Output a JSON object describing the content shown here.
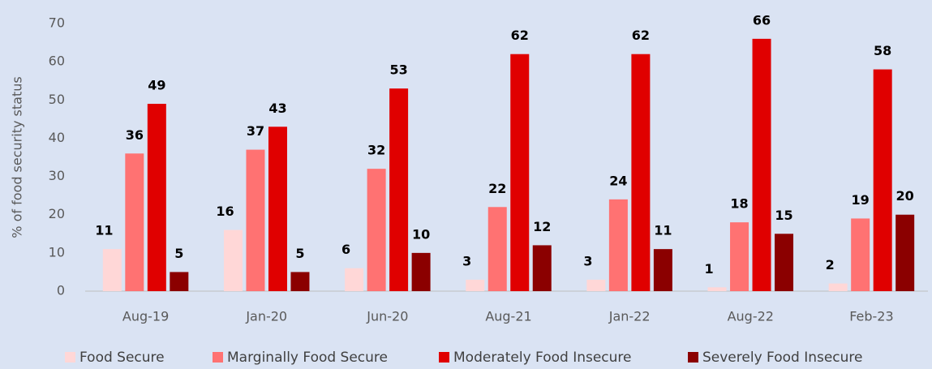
{
  "chart_data": {
    "type": "bar",
    "y_label": "% of food security status",
    "categories": [
      "Aug-19",
      "Jan-20",
      "Jun-20",
      "Aug-21",
      "Jan-22",
      "Aug-22",
      "Feb-23"
    ],
    "series": [
      {
        "name": "Food Secure",
        "color": "#ffd7d7",
        "values": [
          11,
          16,
          6,
          3,
          3,
          1,
          2
        ]
      },
      {
        "name": "Marginally Food Secure",
        "color": "#ff7272",
        "values": [
          36,
          37,
          32,
          22,
          24,
          18,
          19
        ]
      },
      {
        "name": "Moderately Food Insecure",
        "color": "#e00000",
        "values": [
          49,
          43,
          53,
          62,
          62,
          66,
          58
        ]
      },
      {
        "name": "Severely Food Insecure",
        "color": "#8b0000",
        "values": [
          5,
          5,
          10,
          12,
          11,
          15,
          20
        ]
      }
    ],
    "ylim": [
      0,
      70
    ],
    "yticks": [
      0,
      10,
      20,
      30,
      40,
      50,
      60,
      70
    ],
    "grid": false,
    "legend": "bottom"
  }
}
